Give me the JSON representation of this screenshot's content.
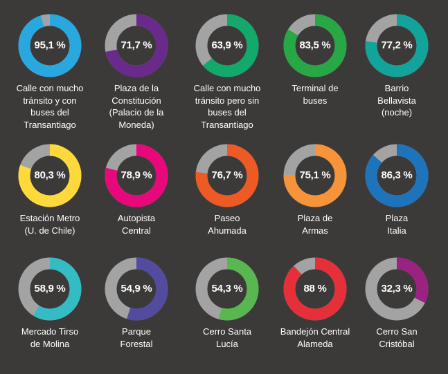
{
  "chart_data": [
    {
      "type": "pie",
      "variant": "donut",
      "value_label": "95,1 %",
      "value": 95.1,
      "color": "#29a8e0",
      "label": "Calle con mucho\ntránsito y con\nbuses del\nTransantiago"
    },
    {
      "type": "pie",
      "variant": "donut",
      "value_label": "71,7 %",
      "value": 71.7,
      "color": "#6a2a8c",
      "label": "Plaza de la\nConstitución\n(Palacio de la\nMoneda)"
    },
    {
      "type": "pie",
      "variant": "donut",
      "value_label": "63,9 %",
      "value": 63.9,
      "color": "#12a96b",
      "label": "Calle con mucho\ntránsito pero sin\nbuses del\nTransantiago"
    },
    {
      "type": "pie",
      "variant": "donut",
      "value_label": "83,5 %",
      "value": 83.5,
      "color": "#27a844",
      "label": "Terminal de\nbuses"
    },
    {
      "type": "pie",
      "variant": "donut",
      "value_label": "77,2 %",
      "value": 77.2,
      "color": "#12a39a",
      "label": "Barrio\nBellavista\n(noche)"
    },
    {
      "type": "pie",
      "variant": "donut",
      "value_label": "80,3 %",
      "value": 80.3,
      "color": "#ffd93b",
      "label": "Estación Metro\n(U. de Chile)"
    },
    {
      "type": "pie",
      "variant": "donut",
      "value_label": "78,9 %",
      "value": 78.9,
      "color": "#e8087c",
      "label": "Autopista\nCentral"
    },
    {
      "type": "pie",
      "variant": "donut",
      "value_label": "76,7 %",
      "value": 76.7,
      "color": "#ee5a24",
      "label": "Paseo\nAhumada"
    },
    {
      "type": "pie",
      "variant": "donut",
      "value_label": "75,1 %",
      "value": 75.1,
      "color": "#f7943a",
      "label": "Plaza  de\nArmas"
    },
    {
      "type": "pie",
      "variant": "donut",
      "value_label": "86,3 %",
      "value": 86.3,
      "color": "#1e74bb",
      "label": "Plaza\nItalia"
    },
    {
      "type": "pie",
      "variant": "donut",
      "value_label": "58,9 %",
      "value": 58.9,
      "color": "#33bcc4",
      "label": "Mercado Tirso\nde Molina"
    },
    {
      "type": "pie",
      "variant": "donut",
      "value_label": "54,9 %",
      "value": 54.9,
      "color": "#534b9f",
      "label": "Parque\nForestal"
    },
    {
      "type": "pie",
      "variant": "donut",
      "value_label": "54,3 %",
      "value": 54.3,
      "color": "#58b74f",
      "label": "Cerro Santa\nLucía"
    },
    {
      "type": "pie",
      "variant": "donut",
      "value_label": "88 %",
      "value": 88,
      "color": "#e5303a",
      "label": "Bandejón Central\nAlameda"
    },
    {
      "type": "pie",
      "variant": "donut",
      "value_label": "32,3 %",
      "value": 32.3,
      "color": "#9b2182",
      "label": "Cerro San\nCristóbal"
    }
  ],
  "colors": {
    "remainder": "#a3a3a3",
    "background": "#3b3a39",
    "text": "#ffffff"
  }
}
